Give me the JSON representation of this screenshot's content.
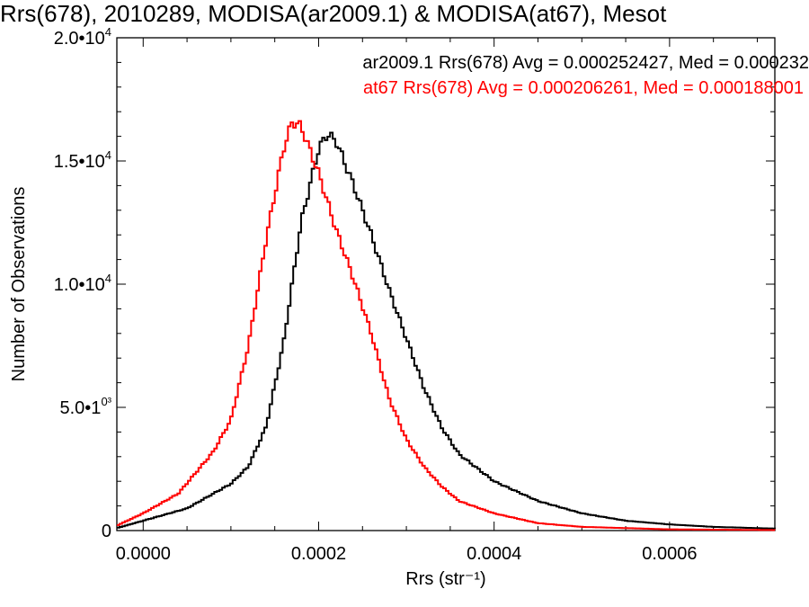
{
  "chart_data": {
    "type": "line",
    "title": "Rrs(678), 2010289, MODISA(ar2009.1) & MODISA(at67), Mesot",
    "xlabel": "Rrs (str⁻¹)",
    "ylabel": "Number of Observations",
    "xlim": [
      -3e-05,
      0.00072
    ],
    "ylim": [
      0,
      20000
    ],
    "x_ticks": [
      {
        "value": 0.0,
        "label": "0.0000"
      },
      {
        "value": 0.0002,
        "label": "0.0002"
      },
      {
        "value": 0.0004,
        "label": "0.0004"
      },
      {
        "value": 0.0006,
        "label": "0.0006"
      }
    ],
    "y_ticks": [
      {
        "value": 0,
        "base": "0",
        "exp": ""
      },
      {
        "value": 5000,
        "base": "5.0•1",
        "exp": "0³"
      },
      {
        "value": 10000,
        "base": "1.0•10",
        "exp": "4"
      },
      {
        "value": 15000,
        "base": "1.5•10",
        "exp": "4"
      },
      {
        "value": 20000,
        "base": "2.0•10",
        "exp": "4"
      }
    ],
    "grid": false,
    "legend_position": "top-right",
    "series": [
      {
        "label": "ar2009.1 Rrs(678) Avg = 0.000252427, Med = 0.000232",
        "color": "#000000",
        "points": [
          [
            -3e-05,
            100
          ],
          [
            0.0,
            400
          ],
          [
            5e-05,
            900
          ],
          [
            0.0001,
            1900
          ],
          [
            0.00012,
            2600
          ],
          [
            0.00014,
            4200
          ],
          [
            0.00016,
            7600
          ],
          [
            0.00018,
            12500
          ],
          [
            0.0002,
            15500
          ],
          [
            0.00021,
            16100
          ],
          [
            0.00022,
            15800
          ],
          [
            0.00024,
            14000
          ],
          [
            0.00026,
            12000
          ],
          [
            0.00028,
            9800
          ],
          [
            0.0003,
            7800
          ],
          [
            0.00032,
            5800
          ],
          [
            0.00034,
            4200
          ],
          [
            0.00036,
            3100
          ],
          [
            0.0004,
            2000
          ],
          [
            0.00045,
            1200
          ],
          [
            0.0005,
            700
          ],
          [
            0.00055,
            400
          ],
          [
            0.0006,
            250
          ],
          [
            0.00065,
            150
          ],
          [
            0.0007,
            100
          ],
          [
            0.00072,
            80
          ]
        ]
      },
      {
        "label": "at67 Rrs(678) Avg = 0.000206261, Med = 0.000188001",
        "color": "#ff0000",
        "points": [
          [
            -3e-05,
            200
          ],
          [
            0.0,
            700
          ],
          [
            4e-05,
            1500
          ],
          [
            8e-05,
            3200
          ],
          [
            0.0001,
            4500
          ],
          [
            0.00012,
            7500
          ],
          [
            0.00014,
            11800
          ],
          [
            0.00016,
            15500
          ],
          [
            0.00017,
            16600
          ],
          [
            0.00018,
            16400
          ],
          [
            0.0002,
            14500
          ],
          [
            0.00022,
            12200
          ],
          [
            0.00024,
            10200
          ],
          [
            0.00026,
            8000
          ],
          [
            0.00028,
            5400
          ],
          [
            0.0003,
            3700
          ],
          [
            0.00032,
            2600
          ],
          [
            0.00034,
            1800
          ],
          [
            0.00036,
            1200
          ],
          [
            0.0004,
            700
          ],
          [
            0.00045,
            300
          ],
          [
            0.0005,
            150
          ],
          [
            0.0006,
            50
          ],
          [
            0.00072,
            20
          ]
        ]
      }
    ]
  }
}
